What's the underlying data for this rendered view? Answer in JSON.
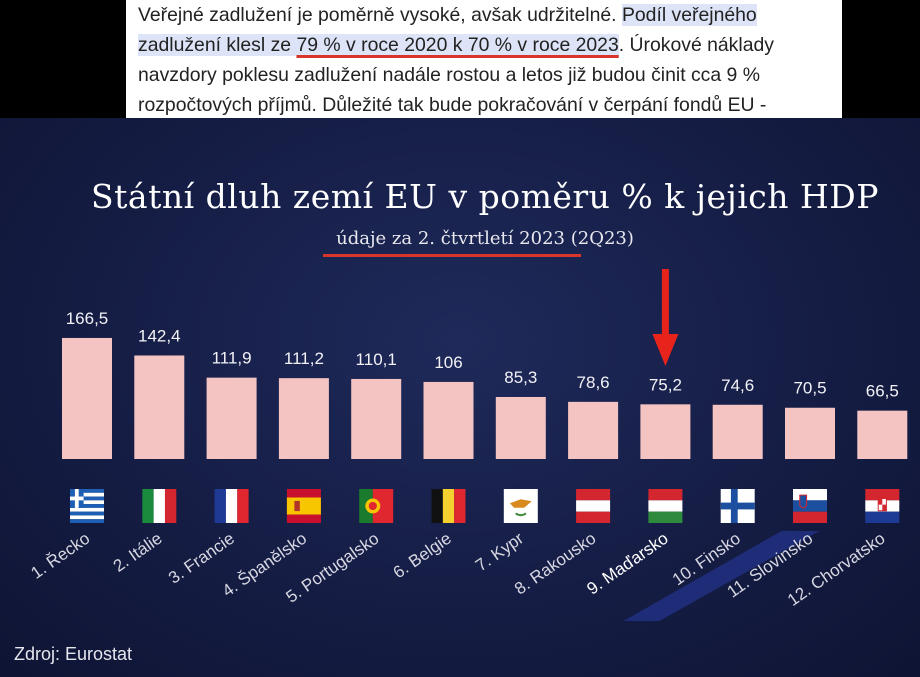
{
  "article": {
    "sentence1": "Veřejné zadlužení je poměrně vysoké, avšak udržitelné. ",
    "highlight_a": "Podíl veřejného zadlužení klesl ze ",
    "highlight_underlined": "79 % v roce 2020 k 70 % v roce 2023",
    "highlight_b": ".",
    "rest": " Úrokové náklady navzdory poklesu zadlužení nadále rostou a letos již budou činit cca 9 % rozpočtových příjmů. Důležité tak bude pokračování v čerpání fondů EU - opožděné, ale hlavně nekrácené."
  },
  "chart_data": {
    "type": "bar",
    "title": "Státní dluh zemí EU v poměru % k jejich HDP",
    "subtitle": "údaje za 2. čtvrtletí 2023 (2Q23)",
    "categories": [
      "1. Řecko",
      "2. Itálie",
      "3. Francie",
      "4. Španělsko",
      "5. Portugalsko",
      "6. Belgie",
      "7. Kypr",
      "8. Rakousko",
      "9. Maďarsko",
      "10. Finsko",
      "11. Slovinsko",
      "12. Chorvatsko"
    ],
    "value_labels": [
      "166,5",
      "142,4",
      "111,9",
      "111,2",
      "110,1",
      "106",
      "85,3",
      "78,6",
      "75,2",
      "74,6",
      "70,5",
      "66,5"
    ],
    "values": [
      166.5,
      142.4,
      111.9,
      111.2,
      110.1,
      106,
      85.3,
      78.6,
      75.2,
      74.6,
      70.5,
      66.5
    ],
    "flags": [
      "greece",
      "italy",
      "france",
      "spain",
      "portugal",
      "belgium",
      "cyprus",
      "austria",
      "hungary",
      "finland",
      "slovenia",
      "croatia"
    ],
    "highlighted_index": 8,
    "bar_color": "#f4c4c2",
    "highlight_color": "#1f2c78",
    "arrow_color": "#e8231c"
  },
  "source": "Zdroj: Eurostat"
}
